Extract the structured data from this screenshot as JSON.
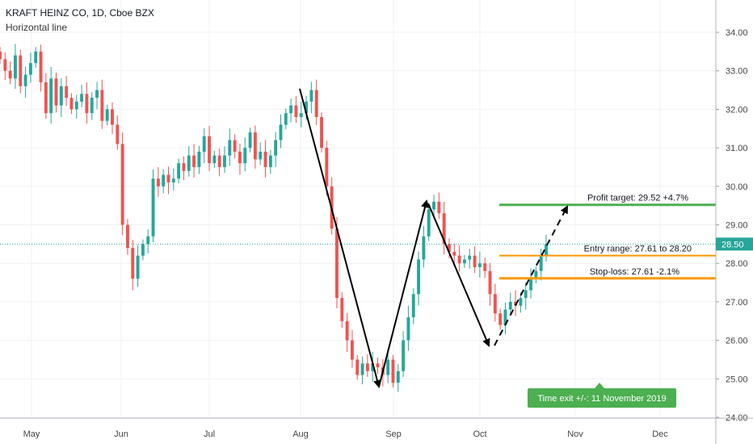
{
  "header": {
    "title": "KRAFT HEINZ CO, 1D, Cboe BZX",
    "subtitle": "Horizontal line"
  },
  "colors": {
    "up": "#26a69a",
    "down": "#ef5350",
    "grid": "#eef0f3",
    "target": "#4caf50",
    "entry": "#ff9800",
    "price_line": "#26a69a",
    "arrows": "#000000"
  },
  "chart_data": {
    "type": "candlestick",
    "title": "KRAFT HEINZ CO, 1D, Cboe BZX",
    "ylim": [
      24.0,
      34.8
    ],
    "y_ticks": [
      "24.00",
      "25.00",
      "26.00",
      "27.00",
      "28.00",
      "29.00",
      "30.00",
      "31.00",
      "32.00",
      "33.00",
      "34.00"
    ],
    "x_ticks": [
      "May",
      "Jun",
      "Jul",
      "Aug",
      "Sep",
      "Oct",
      "Nov",
      "Dec"
    ],
    "last_price": "28.50",
    "closes": [
      33.3,
      33.0,
      32.8,
      33.4,
      32.6,
      32.9,
      33.2,
      33.5,
      32.7,
      31.9,
      32.8,
      32.1,
      32.6,
      32.3,
      32.0,
      32.2,
      32.4,
      31.9,
      32.3,
      32.5,
      31.7,
      32.0,
      31.6,
      31.1,
      29.0,
      28.4,
      27.6,
      28.2,
      28.5,
      28.7,
      30.2,
      30.0,
      30.3,
      30.1,
      30.2,
      30.6,
      30.4,
      30.8,
      30.5,
      30.9,
      31.3,
      30.6,
      30.8,
      30.5,
      30.8,
      31.2,
      30.9,
      30.6,
      31.0,
      31.4,
      30.7,
      30.9,
      30.5,
      30.8,
      31.2,
      31.6,
      31.9,
      32.1,
      31.8,
      31.9,
      32.2,
      32.5,
      31.8,
      31.0,
      30.0,
      28.9,
      27.1,
      26.5,
      26.0,
      25.5,
      25.1,
      25.4,
      25.2,
      25.4,
      25.3,
      25.1,
      25.5,
      24.9,
      25.2,
      26.0,
      26.6,
      27.2,
      28.1,
      28.7,
      29.4,
      29.6,
      29.3,
      28.5,
      28.3,
      28.2,
      28.0,
      28.1,
      28.2,
      27.9,
      28.0,
      27.8,
      27.2,
      26.7,
      26.4,
      26.8,
      27.0,
      26.9,
      27.1,
      27.3,
      27.6,
      27.8,
      28.2,
      28.5
    ],
    "horizontal_levels": [
      {
        "label": "Profit target: 29.52 +4.7%",
        "value": 29.52
      },
      {
        "label": "Entry range: 27.61 to 28.20",
        "value": 28.2
      },
      {
        "label": "Stop-loss: 27.61 -2.1%",
        "value": 27.61
      }
    ],
    "time_exit_label": "Time exit +/-: 11 November 2019"
  }
}
